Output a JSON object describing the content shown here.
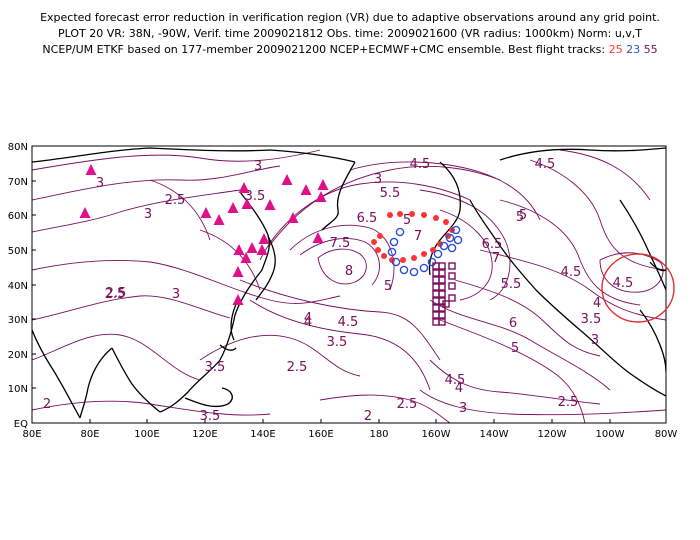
{
  "title": {
    "line1": "Expected forecast error reduction in verification region (VR) due to adaptive observations around any grid point.",
    "line2": "PLOT 20 VR: 38N, -90W, Verif. time 2009021812 Obs. time: 2009021600 (VR radius: 1000km) Norm: u,v,T",
    "line3_prefix": "NCEP/UM ETKF based on 177-member 2009021200 NCEP+ECMWF+CMC ensemble. Best flight tracks:",
    "track_a": "25",
    "track_b": "23",
    "track_c": "55"
  },
  "colors": {
    "contour": "#7a0f5c",
    "coast": "#000000",
    "track_red": "#ff3333",
    "track_blue": "#2a4fd6",
    "track_purple": "#7a0f5c",
    "triangles": "#e0108a",
    "vr_circle": "#e03030"
  },
  "axes": {
    "lon_labels": [
      "80E",
      "80E",
      "100E",
      "120E",
      "140E",
      "160E",
      "180",
      "160W",
      "140W",
      "120W",
      "100W",
      "80W"
    ],
    "lat_labels": [
      "EQ",
      "10N",
      "20N",
      "30N",
      "40N",
      "50N",
      "60N",
      "70N",
      "80N"
    ]
  },
  "contour_labels": [
    "3",
    "2.5",
    "3",
    "3.5",
    "4.5",
    "3",
    "3",
    "2.5",
    "3",
    "4",
    "6.5",
    "5",
    "5.5",
    "7",
    "7.5",
    "8",
    "4",
    "4.5",
    "3.5",
    "5",
    "6.5",
    "5.5",
    "7",
    "5",
    "4.5",
    "4.5",
    "4",
    "6",
    "5",
    "3.5",
    "3",
    "2.5",
    "3.5",
    "4.5",
    "4",
    "2.5",
    "2",
    "3.5",
    "2.5",
    "3",
    "2",
    "2.5",
    "5",
    "4.5"
  ]
}
